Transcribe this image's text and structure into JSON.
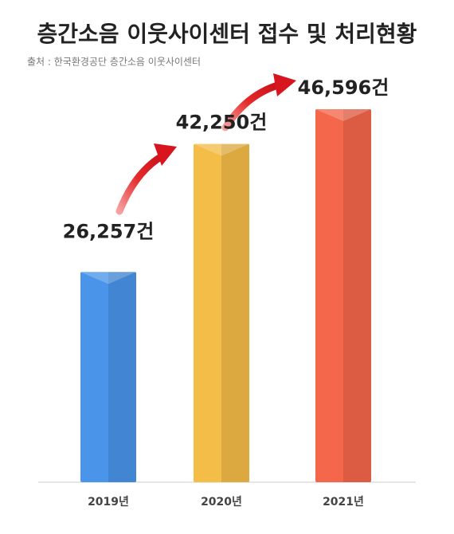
{
  "chart_data": {
    "type": "bar",
    "title": "층간소음 이웃사이센터 접수 및 처리현황",
    "subtitle": "출처 : 한국환경공단 층간소음 이웃사이센터",
    "categories": [
      "2019년",
      "2020년",
      "2021년"
    ],
    "values": [
      26257,
      42250,
      46596
    ],
    "value_labels": [
      "26,257건",
      "42,250건",
      "46,596건"
    ],
    "colors": [
      "#4a95ea",
      "#f4bd48",
      "#f4674a"
    ]
  }
}
